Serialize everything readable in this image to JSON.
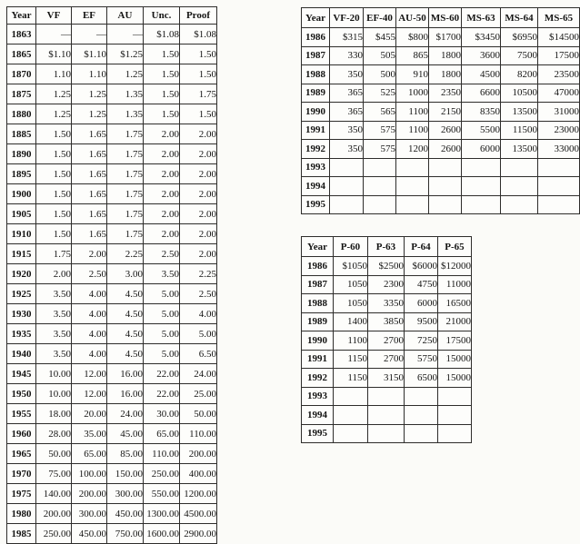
{
  "page": {
    "background": "#fbfbf8"
  },
  "colors": {
    "table_border": "#2e2d2b",
    "text": "#141413",
    "cell_background": "#fdfdfb"
  },
  "tables": [
    {
      "id": "circulated-proof-price-table",
      "columns": [
        "Year",
        "VF",
        "EF",
        "AU",
        "Unc.",
        "Proof"
      ],
      "rows": [
        [
          "1863",
          "—",
          "—",
          "—",
          "$1.08",
          "$1.08"
        ],
        [
          "1865",
          "$1.10",
          "$1.10",
          "$1.25",
          "1.50",
          "1.50"
        ],
        [
          "1870",
          "1.10",
          "1.10",
          "1.25",
          "1.50",
          "1.50"
        ],
        [
          "1875",
          "1.25",
          "1.25",
          "1.35",
          "1.50",
          "1.75"
        ],
        [
          "1880",
          "1.25",
          "1.25",
          "1.35",
          "1.50",
          "1.50"
        ],
        [
          "1885",
          "1.50",
          "1.65",
          "1.75",
          "2.00",
          "2.00"
        ],
        [
          "1890",
          "1.50",
          "1.65",
          "1.75",
          "2.00",
          "2.00"
        ],
        [
          "1895",
          "1.50",
          "1.65",
          "1.75",
          "2.00",
          "2.00"
        ],
        [
          "1900",
          "1.50",
          "1.65",
          "1.75",
          "2.00",
          "2.00"
        ],
        [
          "1905",
          "1.50",
          "1.65",
          "1.75",
          "2.00",
          "2.00"
        ],
        [
          "1910",
          "1.50",
          "1.65",
          "1.75",
          "2.00",
          "2.00"
        ],
        [
          "1915",
          "1.75",
          "2.00",
          "2.25",
          "2.50",
          "2.00"
        ],
        [
          "1920",
          "2.00",
          "2.50",
          "3.00",
          "3.50",
          "2.25"
        ],
        [
          "1925",
          "3.50",
          "4.00",
          "4.50",
          "5.00",
          "2.50"
        ],
        [
          "1930",
          "3.50",
          "4.00",
          "4.50",
          "5.00",
          "4.00"
        ],
        [
          "1935",
          "3.50",
          "4.00",
          "4.50",
          "5.00",
          "5.00"
        ],
        [
          "1940",
          "3.50",
          "4.00",
          "4.50",
          "5.00",
          "6.50"
        ],
        [
          "1945",
          "10.00",
          "12.00",
          "16.00",
          "22.00",
          "24.00"
        ],
        [
          "1950",
          "10.00",
          "12.00",
          "16.00",
          "22.00",
          "25.00"
        ],
        [
          "1955",
          "18.00",
          "20.00",
          "24.00",
          "30.00",
          "50.00"
        ],
        [
          "1960",
          "28.00",
          "35.00",
          "45.00",
          "65.00",
          "110.00"
        ],
        [
          "1965",
          "50.00",
          "65.00",
          "85.00",
          "110.00",
          "200.00"
        ],
        [
          "1970",
          "75.00",
          "100.00",
          "150.00",
          "250.00",
          "400.00"
        ],
        [
          "1975",
          "140.00",
          "200.00",
          "300.00",
          "550.00",
          "1200.00"
        ],
        [
          "1980",
          "200.00",
          "300.00",
          "450.00",
          "1300.00",
          "4500.00"
        ],
        [
          "1985",
          "250.00",
          "450.00",
          "750.00",
          "1600.00",
          "2900.00"
        ]
      ]
    },
    {
      "id": "mint-state-price-table",
      "columns": [
        "Year",
        "VF-20",
        "EF-40",
        "AU-50",
        "MS-60",
        "MS-63",
        "MS-64",
        "MS-65"
      ],
      "rows": [
        [
          "1986",
          "$315",
          "$455",
          "$800",
          "$1700",
          "$3450",
          "$6950",
          "$14500"
        ],
        [
          "1987",
          "330",
          "505",
          "865",
          "1800",
          "3600",
          "7500",
          "17500"
        ],
        [
          "1988",
          "350",
          "500",
          "910",
          "1800",
          "4500",
          "8200",
          "23500"
        ],
        [
          "1989",
          "365",
          "525",
          "1000",
          "2350",
          "6600",
          "10500",
          "47000"
        ],
        [
          "1990",
          "365",
          "565",
          "1100",
          "2150",
          "8350",
          "13500",
          "31000"
        ],
        [
          "1991",
          "350",
          "575",
          "1100",
          "2600",
          "5500",
          "11500",
          "23000"
        ],
        [
          "1992",
          "350",
          "575",
          "1200",
          "2600",
          "6000",
          "13500",
          "33000"
        ],
        [
          "1993",
          "",
          "",
          "",
          "",
          "",
          "",
          ""
        ],
        [
          "1994",
          "",
          "",
          "",
          "",
          "",
          "",
          ""
        ],
        [
          "1995",
          "",
          "",
          "",
          "",
          "",
          "",
          ""
        ]
      ]
    },
    {
      "id": "proof-grade-price-table",
      "columns": [
        "Year",
        "P-60",
        "P-63",
        "P-64",
        "P-65"
      ],
      "rows": [
        [
          "1986",
          "$1050",
          "$2500",
          "$6000",
          "$12000"
        ],
        [
          "1987",
          "1050",
          "2300",
          "4750",
          "11000"
        ],
        [
          "1988",
          "1050",
          "3350",
          "6000",
          "16500"
        ],
        [
          "1989",
          "1400",
          "3850",
          "9500",
          "21000"
        ],
        [
          "1990",
          "1100",
          "2700",
          "7250",
          "17500"
        ],
        [
          "1991",
          "1150",
          "2700",
          "5750",
          "15000"
        ],
        [
          "1992",
          "1150",
          "3150",
          "6500",
          "15000"
        ],
        [
          "1993",
          "",
          "",
          "",
          ""
        ],
        [
          "1994",
          "",
          "",
          "",
          ""
        ],
        [
          "1995",
          "",
          "",
          "",
          ""
        ]
      ]
    }
  ]
}
